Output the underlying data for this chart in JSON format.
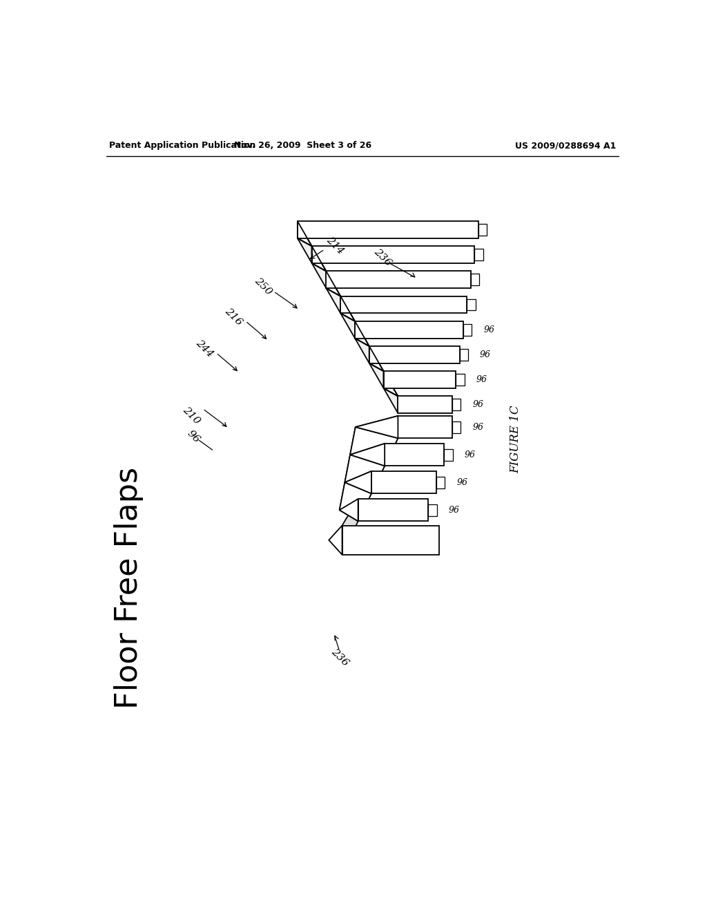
{
  "bg_color": "#ffffff",
  "header_left": "Patent Application Publication",
  "header_mid": "Nov. 26, 2009  Sheet 3 of 26",
  "header_right": "US 2009/0288694 A1",
  "figure_label": "FIGURE 1C",
  "title_text": "Floor Free Flaps",
  "lw_main": 1.3,
  "lw_thin": 0.9
}
